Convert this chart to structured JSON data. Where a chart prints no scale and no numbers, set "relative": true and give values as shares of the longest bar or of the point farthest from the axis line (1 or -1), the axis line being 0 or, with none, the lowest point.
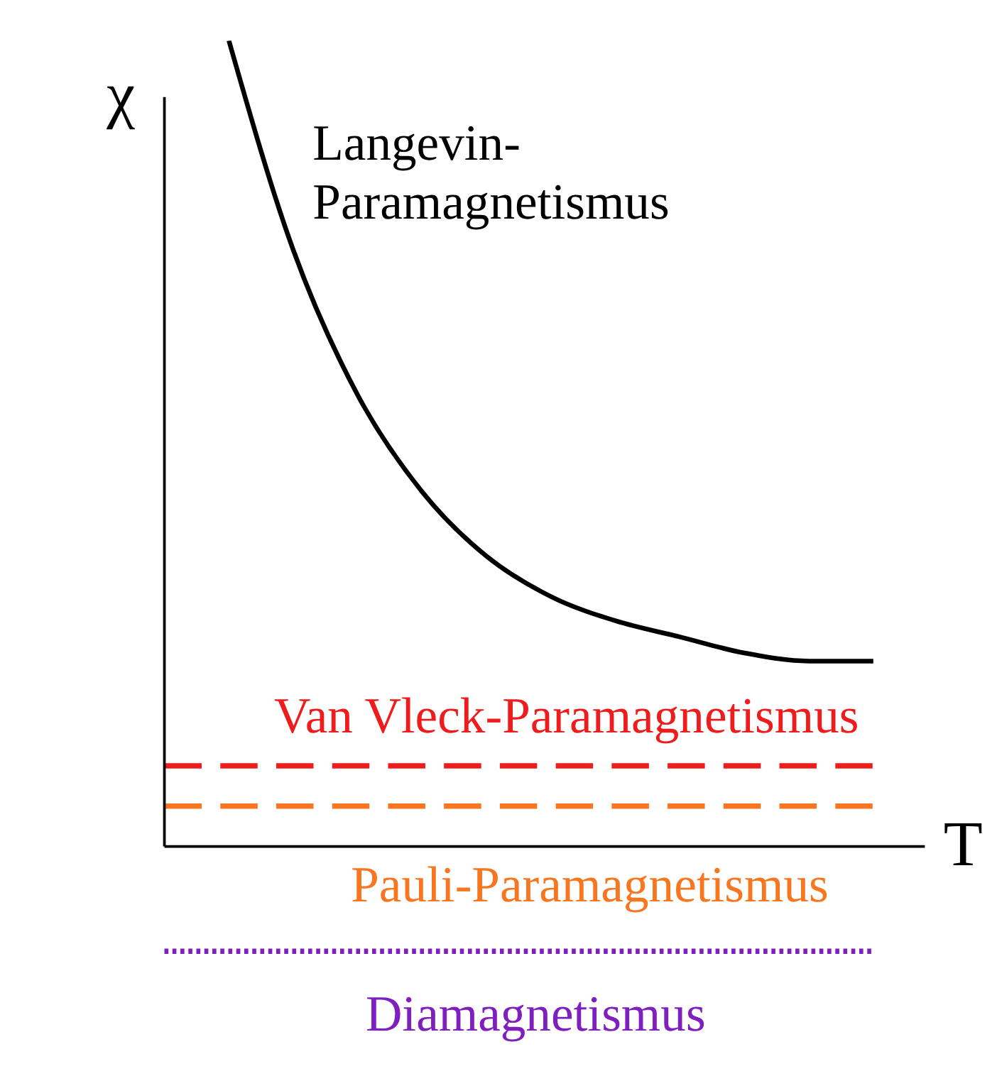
{
  "chart_data": {
    "type": "line",
    "relative": true,
    "xlabel": "T",
    "ylabel": "χ",
    "categories": [
      null,
      null,
      null,
      null,
      null,
      null,
      null,
      null,
      null,
      null,
      null,
      null
    ],
    "series": [
      {
        "name": "Langevin-Paramagnetismus",
        "color": "#000000",
        "line_style": "solid",
        "values": [
          null,
          1.0,
          0.74,
          0.56,
          0.44,
          0.36,
          0.31,
          0.28,
          0.26,
          0.24,
          0.23,
          0.23
        ]
      },
      {
        "name": "Van Vleck-Paramagnetismus",
        "color": "#ee1c1c",
        "line_style": "dashed",
        "values": [
          0.1,
          0.1,
          0.1,
          0.1,
          0.1,
          0.1,
          0.1,
          0.1,
          0.1,
          0.1,
          0.1,
          0.1
        ]
      },
      {
        "name": "Pauli-Paramagnetismus",
        "color": "#f7761f",
        "line_style": "dashed",
        "values": [
          0.05,
          0.05,
          0.05,
          0.05,
          0.05,
          0.05,
          0.05,
          0.05,
          0.05,
          0.05,
          0.05,
          0.05
        ]
      },
      {
        "name": "Diamagnetismus",
        "color": "#7f1fbf",
        "line_style": "dotted",
        "values": [
          -0.13,
          -0.13,
          -0.13,
          -0.13,
          -0.13,
          -0.13,
          -0.13,
          -0.13,
          -0.13,
          -0.13,
          -0.13,
          -0.13
        ]
      }
    ]
  }
}
